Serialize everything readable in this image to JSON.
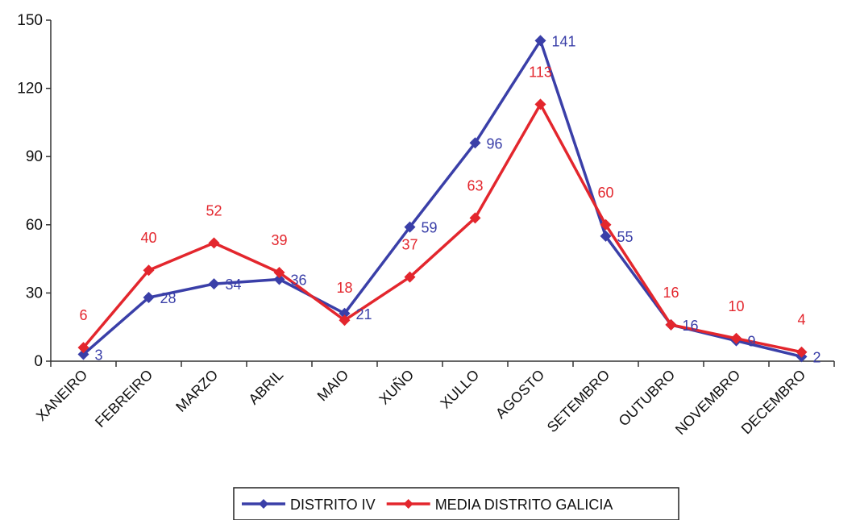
{
  "chart_data": {
    "type": "line",
    "title": "",
    "xlabel": "",
    "ylabel": "",
    "ylim": [
      0,
      150
    ],
    "yticks": [
      0,
      30,
      60,
      90,
      120,
      150
    ],
    "grid": false,
    "legend_position": "bottom-center",
    "categories": [
      "XANEIRO",
      "FEBREIRO",
      "MARZO",
      "ABRIL",
      "MAIO",
      "XUÑO",
      "XULLO",
      "AGOSTO",
      "SETEMBRO",
      "OUTUBRO",
      "NOVEMBRO",
      "DECEMBRO"
    ],
    "series": [
      {
        "name": "DISTRITO IV",
        "color": "#3a3fa8",
        "marker": "diamond",
        "values": [
          3,
          28,
          34,
          36,
          21,
          59,
          96,
          141,
          55,
          16,
          9,
          2
        ]
      },
      {
        "name": "MEDIA DISTRITO GALICIA",
        "color": "#e3262d",
        "marker": "diamond",
        "values": [
          6,
          40,
          52,
          39,
          18,
          37,
          63,
          113,
          60,
          16,
          10,
          4
        ]
      }
    ]
  }
}
